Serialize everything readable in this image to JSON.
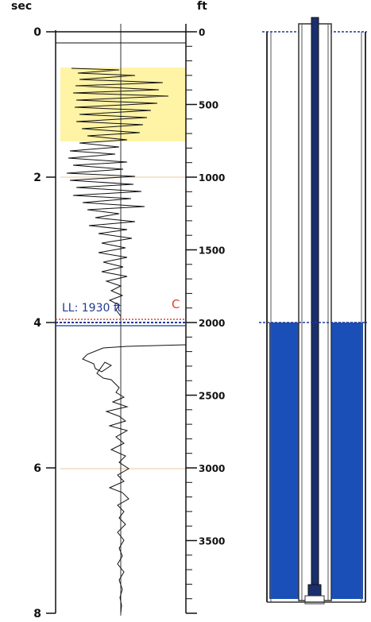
{
  "left_axis": {
    "unit": "sec",
    "ticks": [
      {
        "value": 0,
        "label": "0"
      },
      {
        "value": 2,
        "label": "2"
      },
      {
        "value": 4,
        "label": "4"
      },
      {
        "value": 6,
        "label": "6"
      },
      {
        "value": 8,
        "label": "8"
      }
    ],
    "range": [
      0,
      8
    ]
  },
  "right_axis": {
    "unit": "ft",
    "ticks": [
      {
        "value": 0,
        "label": "0"
      },
      {
        "value": 500,
        "label": "500"
      },
      {
        "value": 1000,
        "label": "1000"
      },
      {
        "value": 1500,
        "label": "1500"
      },
      {
        "value": 2000,
        "label": "2000"
      },
      {
        "value": 2500,
        "label": "2500"
      },
      {
        "value": 3000,
        "label": "3000"
      },
      {
        "value": 3500,
        "label": "3500"
      }
    ],
    "range": [
      0,
      4000
    ]
  },
  "liquid_level": {
    "label": "LL: 1930 ft",
    "depth_ft": 1930,
    "marker": "C"
  },
  "highlight_band_ft": [
    250,
    750
  ],
  "colors": {
    "highlight": "#fff3a6",
    "liquid": "#1b4fb8",
    "ll_line": "#1f3a93",
    "marker_line": "#e0412b",
    "trace": "#111111",
    "gridline": "#e8c9a0"
  }
}
